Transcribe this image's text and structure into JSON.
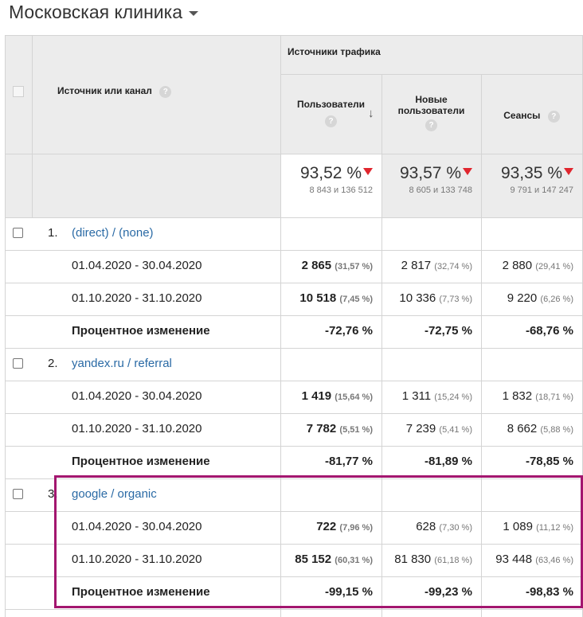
{
  "page_title": "Московская клиника",
  "header": {
    "group_title": "Источники трафика",
    "dimension_label": "Источник или канал",
    "help_glyph": "?",
    "columns": [
      {
        "label_line1": "Пользователи",
        "label_line2": ""
      },
      {
        "label_line1": "Новые",
        "label_line2": "пользователи"
      },
      {
        "label_line1": "Сеансы",
        "label_line2": ""
      }
    ]
  },
  "totals": [
    {
      "value": "93,52 %",
      "detail": "8 843 и 136 512"
    },
    {
      "value": "93,57 %",
      "detail": "8 605 и 133 748"
    },
    {
      "value": "93,35 %",
      "detail": "9 791 и 147 247"
    }
  ],
  "rows": [
    {
      "index": "1.",
      "name": "(direct) / (none)",
      "periods": [
        {
          "date": "01.04.2020 - 30.04.2020",
          "users": "2 865",
          "users_pct": "(31,57 %)",
          "new_users": "2 817",
          "new_users_pct": "(32,74 %)",
          "sessions": "2 880",
          "sessions_pct": "(29,41 %)"
        },
        {
          "date": "01.10.2020 - 31.10.2020",
          "users": "10 518",
          "users_pct": "(7,45 %)",
          "new_users": "10 336",
          "new_users_pct": "(7,73 %)",
          "sessions": "9 220",
          "sessions_pct": "(6,26 %)"
        }
      ],
      "change_label": "Процентное изменение",
      "change": {
        "users": "-72,76 %",
        "new_users": "-72,75 %",
        "sessions": "-68,76 %"
      }
    },
    {
      "index": "2.",
      "name": "yandex.ru / referral",
      "periods": [
        {
          "date": "01.04.2020 - 30.04.2020",
          "users": "1 419",
          "users_pct": "(15,64 %)",
          "new_users": "1 311",
          "new_users_pct": "(15,24 %)",
          "sessions": "1 832",
          "sessions_pct": "(18,71 %)"
        },
        {
          "date": "01.10.2020 - 31.10.2020",
          "users": "7 782",
          "users_pct": "(5,51 %)",
          "new_users": "7 239",
          "new_users_pct": "(5,41 %)",
          "sessions": "8 662",
          "sessions_pct": "(5,88 %)"
        }
      ],
      "change_label": "Процентное изменение",
      "change": {
        "users": "-81,77 %",
        "new_users": "-81,89 %",
        "sessions": "-78,85 %"
      }
    },
    {
      "index": "3.",
      "name": "google / organic",
      "periods": [
        {
          "date": "01.04.2020 - 30.04.2020",
          "users": "722",
          "users_pct": "(7,96 %)",
          "new_users": "628",
          "new_users_pct": "(7,30 %)",
          "sessions": "1 089",
          "sessions_pct": "(11,12 %)"
        },
        {
          "date": "01.10.2020 - 31.10.2020",
          "users": "85 152",
          "users_pct": "(60,31 %)",
          "new_users": "81 830",
          "new_users_pct": "(61,18 %)",
          "sessions": "93 448",
          "sessions_pct": "(63,46 %)"
        }
      ],
      "change_label": "Процентное изменение",
      "change": {
        "users": "-99,15 %",
        "new_users": "-99,23 %",
        "sessions": "-98,83 %"
      }
    }
  ],
  "colors": {
    "link": "#2a6aa5",
    "highlight": "#a3166f",
    "down_arrow": "#e0262e",
    "header_bg": "#ececec"
  }
}
